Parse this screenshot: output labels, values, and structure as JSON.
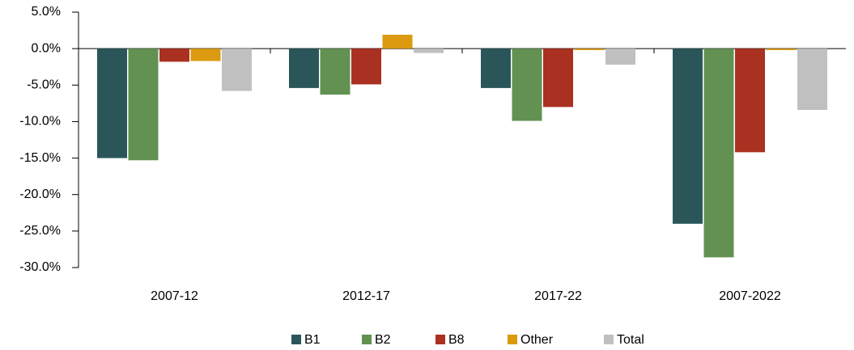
{
  "chart_data": {
    "type": "bar",
    "categories": [
      "2007-12",
      "2012-17",
      "2017-22",
      "2007-2022"
    ],
    "series": [
      {
        "name": "B1",
        "color": "#2a5659",
        "values": [
          -15.0,
          -5.4,
          -5.4,
          -24.0
        ]
      },
      {
        "name": "B2",
        "color": "#629152",
        "values": [
          -15.3,
          -6.3,
          -9.9,
          -28.6
        ]
      },
      {
        "name": "B8",
        "color": "#aa3121",
        "values": [
          -1.8,
          -4.9,
          -8.0,
          -14.2
        ]
      },
      {
        "name": "Other",
        "color": "#db9a10",
        "values": [
          -1.7,
          1.9,
          -0.2,
          -0.2
        ]
      },
      {
        "name": "Total",
        "color": "#c0c0c0",
        "values": [
          -5.8,
          -0.6,
          -2.2,
          -8.4
        ]
      }
    ],
    "ylim": [
      -30,
      5
    ],
    "yticks": [
      {
        "value": 5,
        "label": "5.0%"
      },
      {
        "value": 0,
        "label": "0.0%"
      },
      {
        "value": -5,
        "label": "-5.0%"
      },
      {
        "value": -10,
        "label": "-10.0%"
      },
      {
        "value": -15,
        "label": "-15.0%"
      },
      {
        "value": -20,
        "label": "-20.0%"
      },
      {
        "value": -25,
        "label": "-25.0%"
      },
      {
        "value": -30,
        "label": "-30.0%"
      }
    ],
    "legend": "bottom"
  }
}
